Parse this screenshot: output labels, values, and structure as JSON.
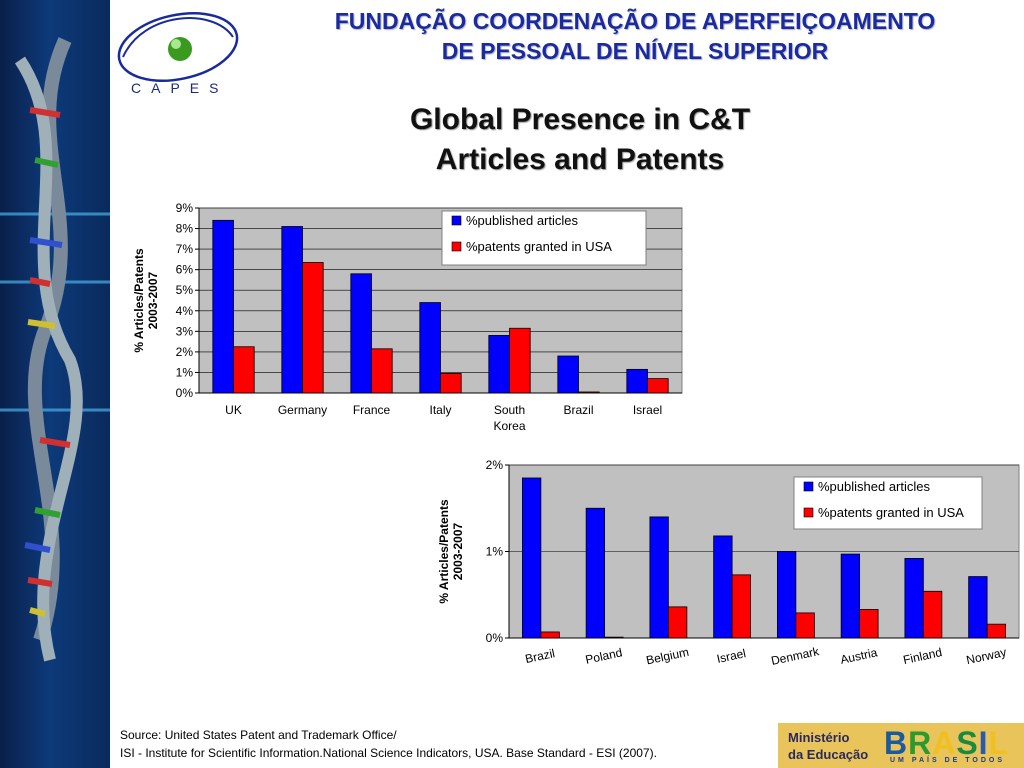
{
  "header": {
    "line1": "FUNDAÇÃO COORDENAÇÃO DE APERFEIÇOAMENTO",
    "line2": "DE PESSOAL DE NÍVEL SUPERIOR"
  },
  "logo": {
    "text": "CAPES"
  },
  "slide": {
    "title_line1": "Global Presence in C&T",
    "title_line2": "Articles and Patents"
  },
  "colors": {
    "articles": "#0000ff",
    "patents": "#ff0000",
    "plot_bg": "#c0c0c0",
    "header": "#1a2aa0"
  },
  "chart_data": [
    {
      "type": "bar",
      "categories": [
        "UK",
        "Germany",
        "France",
        "Italy",
        "South Korea",
        "Brazil",
        "Israel"
      ],
      "category_lines": [
        [
          "UK"
        ],
        [
          "Germany"
        ],
        [
          "France"
        ],
        [
          "Italy"
        ],
        [
          "South",
          "Korea"
        ],
        [
          "Brazil"
        ],
        [
          "Israel"
        ]
      ],
      "series": [
        {
          "name": "%published articles",
          "values": [
            8.4,
            8.1,
            5.8,
            4.4,
            2.8,
            1.8,
            1.15
          ]
        },
        {
          "name": "%patents granted in USA",
          "values": [
            2.25,
            6.35,
            2.15,
            0.95,
            3.15,
            0.05,
            0.7
          ]
        }
      ],
      "ylabel_line1": "% Articles/Patents",
      "ylabel_line2": "2003-2007",
      "ylim": [
        0,
        9
      ],
      "yticks": [
        "0%",
        "1%",
        "2%",
        "3%",
        "4%",
        "5%",
        "6%",
        "7%",
        "8%",
        "9%"
      ],
      "legend": "top-right",
      "grid": true
    },
    {
      "type": "bar",
      "categories": [
        "Brazil",
        "Poland",
        "Belgium",
        "Israel",
        "Denmark",
        "Austria",
        "Finland",
        "Norway"
      ],
      "series": [
        {
          "name": "%published articles",
          "values": [
            1.85,
            1.5,
            1.4,
            1.18,
            1.0,
            0.97,
            0.92,
            0.71
          ]
        },
        {
          "name": "%patents granted in USA",
          "values": [
            0.07,
            0.01,
            0.36,
            0.73,
            0.29,
            0.33,
            0.54,
            0.16
          ]
        }
      ],
      "ylabel_line1": "% Articles/Patents",
      "ylabel_line2": "2003-2007",
      "ylim": [
        0,
        2
      ],
      "yticks": [
        "0%",
        "1%",
        "2%"
      ],
      "legend": "top-right",
      "grid": true
    }
  ],
  "source": {
    "line1": "Source: United States Patent and Trademark Office/",
    "line2": "ISI - Institute for Scientific Information.National Science Indicators, USA. Base Standard - ESI (2007)."
  },
  "footer": {
    "ministry_line1": "Ministério",
    "ministry_line2": "da Educação",
    "brasil": "BRASIL",
    "slogan": "UM PAÍS DE TODOS"
  }
}
